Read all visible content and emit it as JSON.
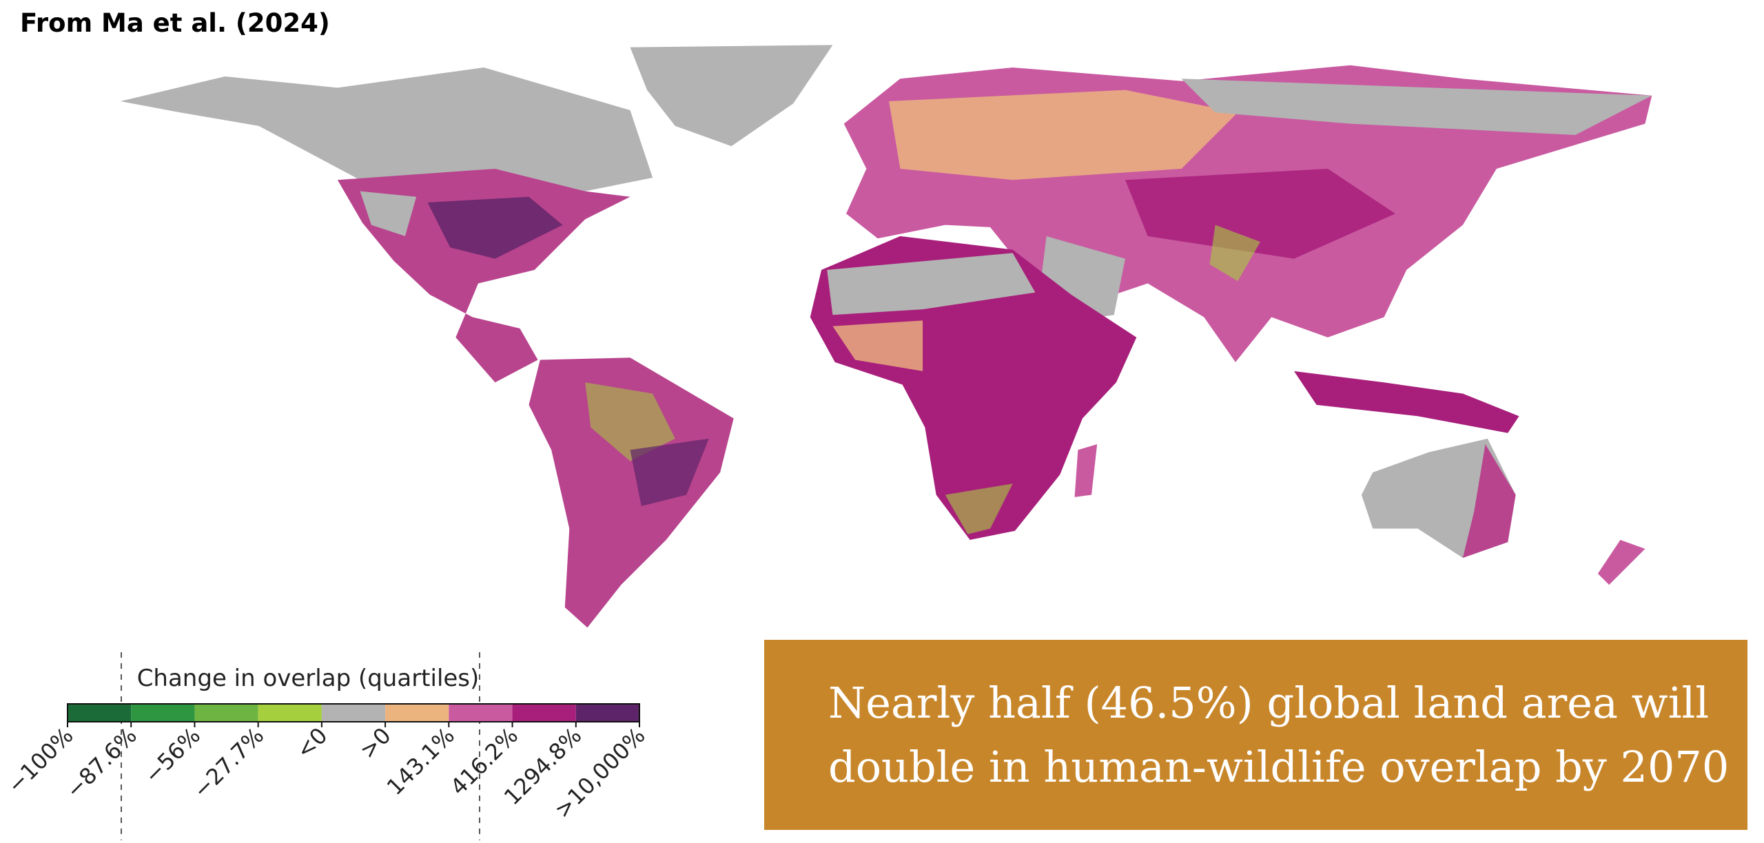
{
  "source": "From Ma et al. (2024)",
  "legend": {
    "title": "Change in overlap (quartiles)",
    "colors": [
      "#1a6b38",
      "#2e9640",
      "#6db443",
      "#a6cf3d",
      "#b3b3b3",
      "#ebb47f",
      "#c95aa0",
      "#a81f7b",
      "#5e2469"
    ],
    "ticks": [
      "−100%",
      "−87.6%",
      "−56%",
      "−27.7%",
      "<0",
      ">0",
      "143.1%",
      "416.2%",
      "1294.8%",
      ">10,000%"
    ]
  },
  "callout": {
    "lines": [
      "Nearly half (46.5%) global land area will",
      "double in human-wildlife overlap by 2070"
    ]
  }
}
